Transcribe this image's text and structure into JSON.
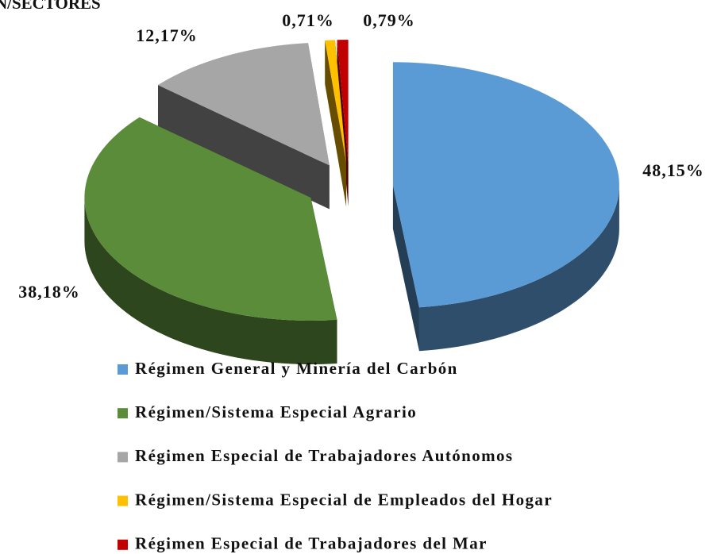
{
  "chart_data": {
    "type": "pie",
    "title": "N/SECTORES",
    "categories": [
      "Régimen General y Minería del Carbón",
      "Régimen/Sistema Especial Agrario",
      "Régimen Especial de Trabajadores Autónomos",
      "Régimen/Sistema Especial de Empleados del Hogar",
      "Régimen Especial de Trabajadores del Mar"
    ],
    "values": [
      48.15,
      38.18,
      12.17,
      0.71,
      0.79
    ],
    "value_labels": [
      "48,15%",
      "38,18%",
      "12,17%",
      "0,71%",
      "0,79%"
    ],
    "colors": [
      "#5b9bd5",
      "#5b8c3a",
      "#a6a6a6",
      "#ffc000",
      "#c00000"
    ],
    "legend": "bottom"
  }
}
